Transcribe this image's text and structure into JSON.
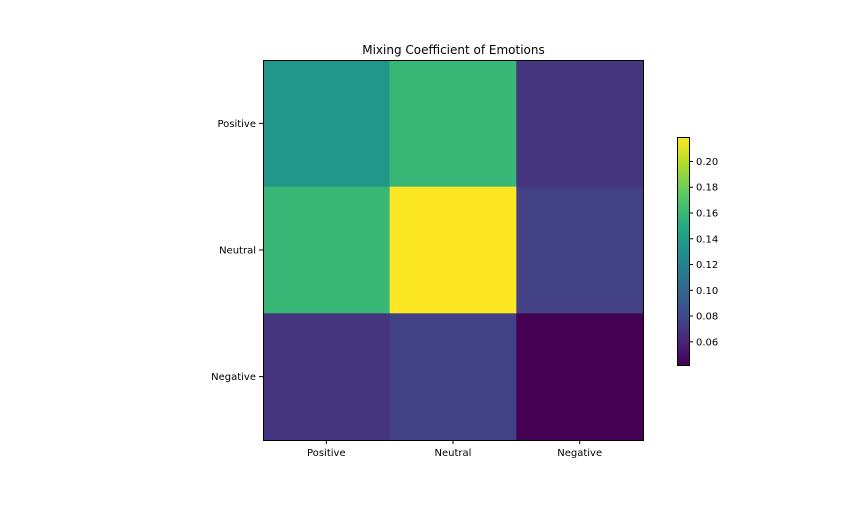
{
  "chart_data": {
    "type": "heatmap",
    "title": "Mixing Coefficient of Emotions",
    "xlabel": "",
    "ylabel": "",
    "x_categories": [
      "Positive",
      "Neutral",
      "Negative"
    ],
    "y_categories": [
      "Positive",
      "Neutral",
      "Negative"
    ],
    "values": [
      [
        0.135,
        0.16,
        0.069
      ],
      [
        0.16,
        0.219,
        0.076
      ],
      [
        0.069,
        0.076,
        0.042
      ]
    ],
    "colormap": "viridis",
    "colorbar": {
      "vmin": 0.042,
      "vmax": 0.219,
      "ticks": [
        0.06,
        0.08,
        0.1,
        0.12,
        0.14,
        0.16,
        0.18,
        0.2
      ],
      "tick_labels": [
        "0.06",
        "0.08",
        "0.10",
        "0.12",
        "0.14",
        "0.16",
        "0.18",
        "0.20"
      ]
    },
    "grid": false
  }
}
